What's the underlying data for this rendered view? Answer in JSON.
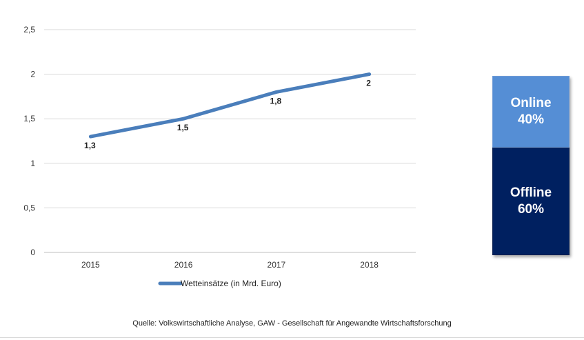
{
  "chart_data": [
    {
      "type": "line",
      "x": [
        "2015",
        "2016",
        "2017",
        "2018"
      ],
      "series": [
        {
          "name": "Wetteinsätze (in Mrd. Euro)",
          "values": [
            1.3,
            1.5,
            1.8,
            2
          ],
          "value_labels": [
            "1,3",
            "1,5",
            "1,8",
            "2"
          ],
          "color": "#4a7ebb"
        }
      ],
      "ylim": [
        0,
        2.5
      ],
      "yticks": [
        0,
        0.5,
        1,
        1.5,
        2,
        2.5
      ],
      "ytick_labels": [
        "0",
        "0,5",
        "1",
        "1,5",
        "2",
        "2,5"
      ],
      "grid": true,
      "legend": "bottom-center"
    },
    {
      "type": "bar",
      "stacked": true,
      "segments": [
        {
          "label": "Online",
          "value": 40,
          "value_label": "40%",
          "color": "#558ed5"
        },
        {
          "label": "Offline",
          "value": 60,
          "value_label": "60%",
          "color": "#002060"
        }
      ]
    }
  ],
  "source": "Quelle: Volkswirtschaftliche Analyse,  GAW - Gesellschaft für Angewandte Wirtschaftsforschung"
}
